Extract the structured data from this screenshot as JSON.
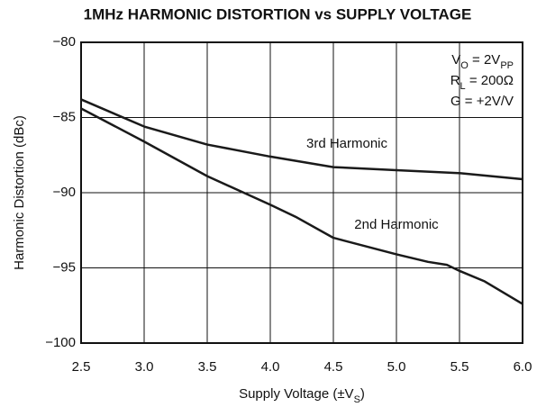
{
  "chart_data": {
    "type": "line",
    "title": "1MHz HARMONIC DISTORTION vs SUPPLY VOLTAGE",
    "x_label": [
      {
        "text": "Supply Voltage (±V"
      },
      {
        "text": "S",
        "sub": true
      },
      {
        "text": ")"
      }
    ],
    "y_label": [
      {
        "text": "Harmonic Distortion (dBc)"
      }
    ],
    "conditions": [
      [
        {
          "text": "V"
        },
        {
          "text": "O",
          "sub": true
        },
        {
          "text": " = 2V"
        },
        {
          "text": "PP",
          "sub": true
        }
      ],
      [
        {
          "text": "R"
        },
        {
          "text": "L",
          "sub": true
        },
        {
          "text": " = 200Ω"
        }
      ],
      [
        {
          "text": "G = +2V/V"
        }
      ]
    ],
    "xlim": [
      2.5,
      6.0
    ],
    "ylim": [
      -100,
      -80
    ],
    "xticks": [
      2.5,
      {
        "value": 3,
        "label": "3.0"
      },
      3.5,
      {
        "value": 4,
        "label": "4.0"
      },
      4.5,
      {
        "value": 5,
        "label": "5.0"
      },
      5.5,
      {
        "value": 6,
        "label": "6.0"
      }
    ],
    "yticks": [
      {
        "value": -100,
        "label": "−100"
      },
      {
        "value": -95,
        "label": "−95"
      },
      {
        "value": -90,
        "label": "−90"
      },
      {
        "value": -85,
        "label": "−85"
      },
      {
        "value": -80,
        "label": "−80"
      }
    ],
    "grid": true,
    "series": [
      {
        "name": "3rd Harmonic",
        "color": "#1a1a1a",
        "x": [
          2.5,
          3.0,
          3.5,
          4.0,
          4.5,
          5.0,
          5.5,
          6.0
        ],
        "values": [
          -83.8,
          -85.6,
          -86.8,
          -87.6,
          -88.3,
          -88.5,
          -88.7,
          -89.1
        ]
      },
      {
        "name": "2nd Harmonic",
        "color": "#1a1a1a",
        "x": [
          2.5,
          3.0,
          3.5,
          4.0,
          4.2,
          4.5,
          5.0,
          5.25,
          5.4,
          5.5,
          5.7,
          6.0
        ],
        "values": [
          -84.4,
          -86.6,
          -88.9,
          -90.8,
          -91.6,
          -93.0,
          -94.1,
          -94.6,
          -94.8,
          -95.2,
          -95.9,
          -97.4
        ]
      }
    ]
  }
}
